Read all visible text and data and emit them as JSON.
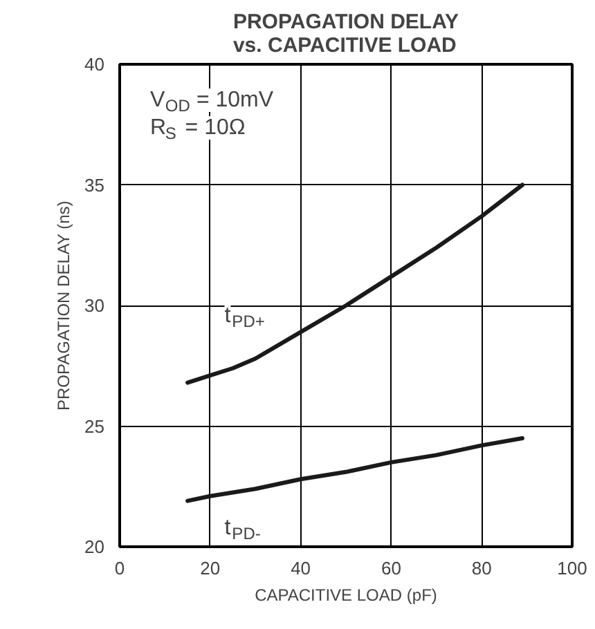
{
  "chart_data": {
    "type": "line",
    "title": "PROPAGATION DELAY\nvs. CAPACITIVE LOAD",
    "xlabel": "CAPACITIVE LOAD (pF)",
    "ylabel": "PROPAGATION DELAY (ns)",
    "annotations": [
      "V$_{OD}$ = 10mV",
      "R$_{S}$ = 10Ω"
    ],
    "x": [
      15,
      20,
      25,
      30,
      40,
      50,
      60,
      70,
      80,
      89
    ],
    "series": [
      {
        "name": "t$_{PD+}$",
        "color": "#1a1a1a",
        "values": [
          26.8,
          27.1,
          27.4,
          27.8,
          28.9,
          30.0,
          31.2,
          32.4,
          33.7,
          35.0
        ]
      },
      {
        "name": "t$_{PD-}$",
        "color": "#1a1a1a",
        "values": [
          21.9,
          22.1,
          22.25,
          22.4,
          22.8,
          23.1,
          23.5,
          23.8,
          24.2,
          24.5
        ]
      }
    ],
    "xlim": [
      0,
      100
    ],
    "ylim": [
      20,
      40
    ],
    "xticks": [
      0,
      20,
      40,
      60,
      80,
      100
    ],
    "yticks": [
      20,
      25,
      30,
      35,
      40
    ],
    "grid": true,
    "line_style": "solid"
  }
}
